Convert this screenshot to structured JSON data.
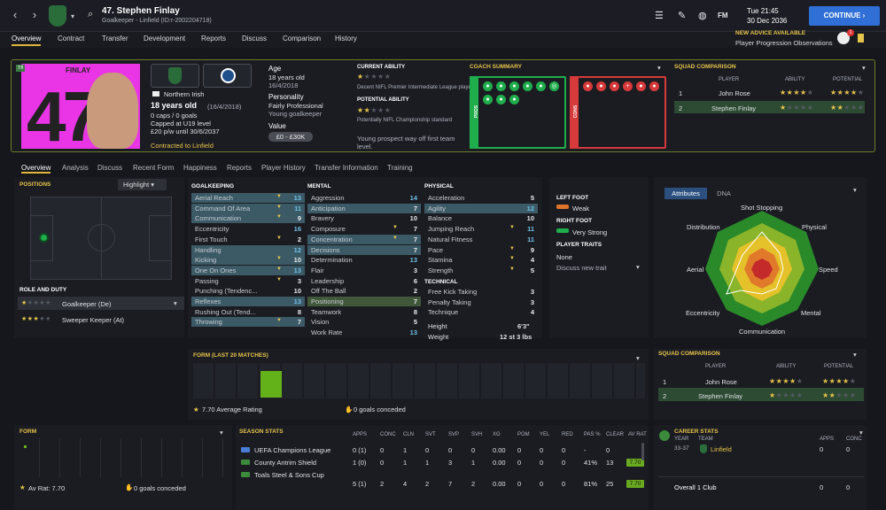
{
  "header": {
    "title": "47. Stephen Finlay",
    "subtitle": "Goalkeeper - Linfield (ID:r-2002204718)",
    "time": "Tue 21:45",
    "date": "30 Dec 2036",
    "continue_label": "CONTINUE",
    "fm_label": "FM",
    "advice_title": "NEW ADVICE AVAILABLE",
    "advice_text": "Player Progression Observations",
    "notif_count": "1"
  },
  "menu": [
    "Overview",
    "Contract",
    "Transfer",
    "Development",
    "Reports",
    "Discuss",
    "Comparison",
    "History"
  ],
  "player": {
    "surname": "FINLAY",
    "number": "47",
    "tag": "Tfl",
    "nationality": "Northern Irish",
    "age_line": "18 years old",
    "dob": "(16/4/2018)",
    "caps": "0 caps / 0 goals",
    "capped": "Capped at U19 level",
    "wage": "£20 p/w until 30/6/2037",
    "contracted": "Contracted to Linfield",
    "age_label": "Age",
    "age_value": "18 years old",
    "age_date": "16/4/2018",
    "personality_label": "Personality",
    "personality": "Fairly Professional",
    "personality_sub": "Young goalkeeper",
    "value_label": "Value",
    "value": "£0 - £30K"
  },
  "ability": {
    "current_label": "CURRENT ABILITY",
    "current_desc": "Decent NIFL Premier Intermediate League player",
    "potential_label": "POTENTIAL ABILITY",
    "potential_desc": "Potentially NIFL Championship standard",
    "note": "Young prospect way off first team level."
  },
  "coach": {
    "title": "COACH SUMMARY",
    "pros": "PROS",
    "cons": "CONS"
  },
  "squad": {
    "title": "SQUAD COMPARISON",
    "headers": [
      "PLAYER",
      "ABILITY",
      "POTENTIAL"
    ],
    "rows": [
      {
        "num": "1",
        "name": "John Rose"
      },
      {
        "num": "2",
        "name": "Stephen Finlay"
      }
    ]
  },
  "tabs": [
    "Overview",
    "Analysis",
    "Discuss",
    "Recent Form",
    "Happiness",
    "Reports",
    "Player History",
    "Transfer Information",
    "Training"
  ],
  "positions": {
    "title": "POSITIONS",
    "highlight": "Highlight"
  },
  "role": {
    "title": "ROLE AND DUTY",
    "roles": [
      "Goalkeeper (De)",
      "Sweeper Keeper (At)"
    ]
  },
  "goalkeeping": {
    "title": "GOALKEEPING",
    "rows": [
      [
        "Aerial Reach",
        "13"
      ],
      [
        "Command Of Area",
        "11"
      ],
      [
        "Communication",
        "9"
      ],
      [
        "Eccentricity",
        "16"
      ],
      [
        "First Touch",
        "2"
      ],
      [
        "Handling",
        "12"
      ],
      [
        "Kicking",
        "10"
      ],
      [
        "One On Ones",
        "13"
      ],
      [
        "Passing",
        "3"
      ],
      [
        "Punching (Tendenc...",
        "10"
      ],
      [
        "Reflexes",
        "13"
      ],
      [
        "Rushing Out (Tend...",
        "8"
      ],
      [
        "Throwing",
        "7"
      ]
    ]
  },
  "mental": {
    "title": "MENTAL",
    "rows": [
      [
        "Aggression",
        "14"
      ],
      [
        "Anticipation",
        "7"
      ],
      [
        "Bravery",
        "10"
      ],
      [
        "Composure",
        "7"
      ],
      [
        "Concentration",
        "7"
      ],
      [
        "Decisions",
        "7"
      ],
      [
        "Determination",
        "13"
      ],
      [
        "Flair",
        "3"
      ],
      [
        "Leadership",
        "6"
      ],
      [
        "Off The Ball",
        "2"
      ],
      [
        "Positioning",
        "7"
      ],
      [
        "Teamwork",
        "8"
      ],
      [
        "Vision",
        "5"
      ],
      [
        "Work Rate",
        "13"
      ]
    ]
  },
  "physical": {
    "title": "PHYSICAL",
    "rows": [
      [
        "Acceleration",
        "5"
      ],
      [
        "Agility",
        "12"
      ],
      [
        "Balance",
        "10"
      ],
      [
        "Jumping Reach",
        "11"
      ],
      [
        "Natural Fitness",
        "11"
      ],
      [
        "Pace",
        "9"
      ],
      [
        "Stamina",
        "4"
      ],
      [
        "Strength",
        "5"
      ]
    ]
  },
  "technical": {
    "title": "TECHNICAL",
    "rows": [
      [
        "Free Kick Taking",
        "3"
      ],
      [
        "Penalty Taking",
        "3"
      ],
      [
        "Technique",
        "4"
      ]
    ]
  },
  "body": {
    "height_label": "Height",
    "height": "6'3\"",
    "weight_label": "Weight",
    "weight": "12 st 3 lbs"
  },
  "feet": {
    "left_label": "LEFT FOOT",
    "left": "Weak",
    "right_label": "RIGHT FOOT",
    "right": "Very Strong",
    "traits_label": "PLAYER TRAITS",
    "traits": "None",
    "discuss": "Discuss new trait"
  },
  "radar": {
    "tab1": "Attributes",
    "tab2": "DNA",
    "labels": [
      "Shot Stopping",
      "Physical",
      "Speed",
      "Mental",
      "Communication",
      "Eccentricity",
      "Aerial",
      "Distribution"
    ]
  },
  "form20": {
    "title": "FORM (LAST 20 MATCHES)",
    "avg": "7.70 Average Rating",
    "conceded": "0 goals conceded"
  },
  "squad2": {
    "title": "SQUAD COMPARISON",
    "headers": [
      "PLAYER",
      "ABILITY",
      "POTENTIAL"
    ],
    "rows": [
      {
        "num": "1",
        "name": "John Rose"
      },
      {
        "num": "2",
        "name": "Stephen Finlay"
      }
    ]
  },
  "form": {
    "title": "FORM",
    "avrat": "Av Rat: 7.70",
    "conceded": "0 goals conceded"
  },
  "season": {
    "title": "SEASON STATS",
    "headers": [
      "APPS",
      "CONC",
      "CLN",
      "SVT",
      "SVP",
      "SVH",
      "XG",
      "POM",
      "YEL",
      "RED",
      "PAS %",
      "CLEAR",
      "AV RAT"
    ],
    "rows": [
      {
        "comp": "UEFA Champions League",
        "vals": [
          "0 (1)",
          "0",
          "1",
          "0",
          "0",
          "0",
          "0.00",
          "0",
          "0",
          "0",
          "-",
          "0",
          ""
        ]
      },
      {
        "comp": "County Antrim Shield",
        "vals": [
          "1 (0)",
          "0",
          "1",
          "1",
          "3",
          "1",
          "0.00",
          "0",
          "0",
          "0",
          "41%",
          "13",
          "7.70"
        ]
      },
      {
        "comp": "Toals Steel & Sons Cup",
        "vals": [
          "",
          "",
          "",
          "",
          "",
          "",
          "",
          "",
          "",
          "",
          "",
          "",
          ""
        ]
      },
      {
        "comp": "",
        "vals": [
          "5 (1)",
          "2",
          "4",
          "2",
          "7",
          "2",
          "0.00",
          "0",
          "0",
          "0",
          "81%",
          "25",
          "7.70"
        ]
      }
    ]
  },
  "career": {
    "title": "CAREER STATS",
    "year_h": "YEAR",
    "team_h": "TEAM",
    "apps_h": "APPS",
    "conc_h": "CONC",
    "year": "33-37",
    "team": "Linfield",
    "apps": "0",
    "conc": "0",
    "overall": "Overall 1 Club",
    "oapps": "0",
    "oconc": "0"
  }
}
